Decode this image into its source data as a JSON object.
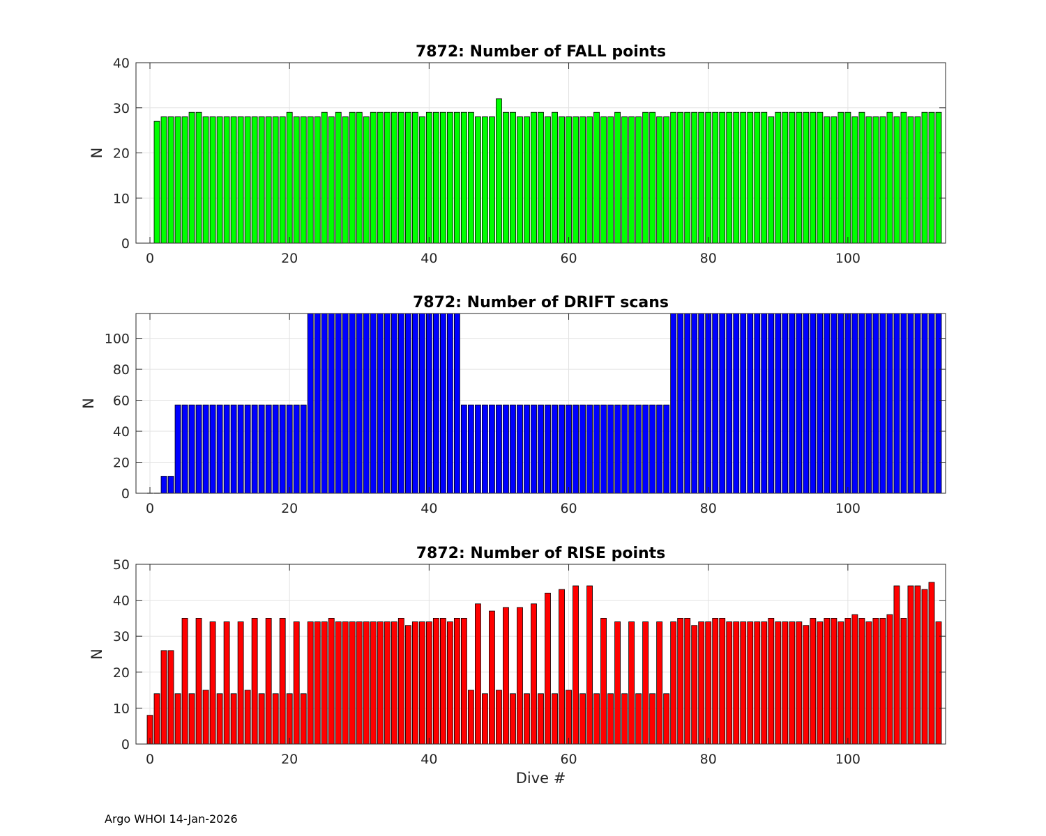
{
  "footer": "Argo WHOI 14-Jan-2026",
  "chart_data": [
    {
      "type": "bar",
      "title": "7872: Number of FALL points",
      "xlabel": "",
      "ylabel": "N",
      "xlim": [
        -2,
        114
      ],
      "ylim": [
        0,
        40
      ],
      "xticks": [
        0,
        20,
        40,
        60,
        80,
        100
      ],
      "yticks": [
        0,
        10,
        20,
        30,
        40
      ],
      "grid": true,
      "color": "#00ff00",
      "x_start": 1,
      "values": [
        27,
        28,
        28,
        28,
        28,
        29,
        29,
        28,
        28,
        28,
        28,
        28,
        28,
        28,
        28,
        28,
        28,
        28,
        28,
        29,
        28,
        28,
        28,
        28,
        29,
        28,
        29,
        28,
        29,
        29,
        28,
        29,
        29,
        29,
        29,
        29,
        29,
        29,
        28,
        29,
        29,
        29,
        29,
        29,
        29,
        29,
        28,
        28,
        28,
        32,
        29,
        29,
        28,
        28,
        29,
        29,
        28,
        29,
        28,
        28,
        28,
        28,
        28,
        29,
        28,
        28,
        29,
        28,
        28,
        28,
        29,
        29,
        28,
        28,
        29,
        29,
        29,
        29,
        29,
        29,
        29,
        29,
        29,
        29,
        29,
        29,
        29,
        29,
        28,
        29,
        29,
        29,
        29,
        29,
        29,
        29,
        28,
        28,
        29,
        29,
        28,
        29,
        28,
        28,
        28,
        29,
        28,
        29,
        28,
        28,
        29,
        29,
        29
      ]
    },
    {
      "type": "bar",
      "title": "7872: Number of DRIFT scans",
      "xlabel": "",
      "ylabel": "N",
      "xlim": [
        -2,
        114
      ],
      "ylim": [
        0,
        116
      ],
      "xticks": [
        0,
        20,
        40,
        60,
        80,
        100
      ],
      "yticks": [
        0,
        20,
        40,
        60,
        80,
        100
      ],
      "grid": true,
      "color": "#0000ff",
      "x_start": 0,
      "values": [
        0,
        0,
        11,
        11,
        57,
        57,
        57,
        57,
        57,
        57,
        57,
        57,
        57,
        57,
        57,
        57,
        57,
        57,
        57,
        57,
        57,
        57,
        57,
        116,
        116,
        116,
        116,
        116,
        116,
        116,
        116,
        116,
        116,
        116,
        116,
        116,
        116,
        116,
        116,
        116,
        116,
        116,
        116,
        116,
        116,
        57,
        57,
        57,
        57,
        57,
        57,
        57,
        57,
        57,
        57,
        57,
        57,
        57,
        57,
        57,
        57,
        57,
        57,
        57,
        57,
        57,
        57,
        57,
        57,
        57,
        57,
        57,
        57,
        57,
        57,
        116,
        116,
        116,
        116,
        116,
        116,
        116,
        116,
        116,
        116,
        116,
        116,
        116,
        116,
        116,
        116,
        116,
        116,
        116,
        116,
        116,
        116,
        116,
        116,
        116,
        116,
        116,
        116,
        116,
        116,
        116,
        116,
        116,
        116,
        116,
        116,
        116,
        116,
        116
      ]
    },
    {
      "type": "bar",
      "title": "7872: Number of RISE points",
      "xlabel": "Dive #",
      "ylabel": "N",
      "xlim": [
        -2,
        114
      ],
      "ylim": [
        0,
        50
      ],
      "xticks": [
        0,
        20,
        40,
        60,
        80,
        100
      ],
      "yticks": [
        0,
        10,
        20,
        30,
        40,
        50
      ],
      "grid": true,
      "color": "#ff0000",
      "x_start": 0,
      "values": [
        8,
        14,
        26,
        26,
        14,
        35,
        14,
        35,
        15,
        34,
        14,
        34,
        14,
        34,
        15,
        35,
        14,
        35,
        14,
        35,
        14,
        34,
        14,
        34,
        34,
        34,
        35,
        34,
        34,
        34,
        34,
        34,
        34,
        34,
        34,
        34,
        35,
        33,
        34,
        34,
        34,
        35,
        35,
        34,
        35,
        35,
        15,
        39,
        14,
        37,
        15,
        38,
        14,
        38,
        14,
        39,
        14,
        42,
        14,
        43,
        15,
        44,
        14,
        44,
        14,
        35,
        14,
        34,
        14,
        34,
        14,
        34,
        14,
        34,
        14,
        34,
        35,
        35,
        33,
        34,
        34,
        35,
        35,
        34,
        34,
        34,
        34,
        34,
        34,
        35,
        34,
        34,
        34,
        34,
        33,
        35,
        34,
        35,
        35,
        34,
        35,
        36,
        35,
        34,
        35,
        35,
        36,
        44,
        35,
        44,
        44,
        43,
        45,
        34
      ]
    }
  ]
}
